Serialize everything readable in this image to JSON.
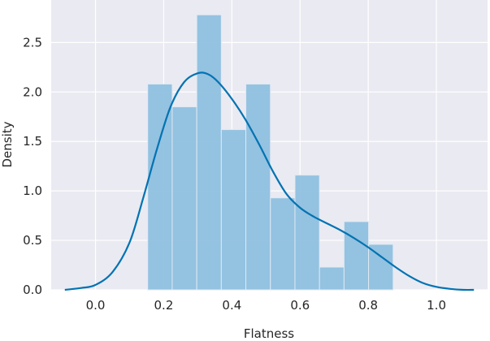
{
  "chart_data": {
    "type": "bar",
    "xlabel": "Flatness",
    "ylabel": "Density",
    "xlim": [
      -0.13,
      1.15
    ],
    "ylim": [
      0,
      2.93
    ],
    "xticks": [
      "0.0",
      "0.2",
      "0.4",
      "0.6",
      "0.8",
      "1.0"
    ],
    "yticks": [
      "0.0",
      "0.5",
      "1.0",
      "1.5",
      "2.0",
      "2.5"
    ],
    "grid": true,
    "colors": {
      "plot_background": "#eaeaf2",
      "grid": "#ffffff",
      "bar_fill": "#8fc0df",
      "kde_line": "#0173b2",
      "text": "#262626"
    },
    "bins": [
      {
        "x0": 0.153,
        "x1": 0.225,
        "density": 2.08
      },
      {
        "x0": 0.225,
        "x1": 0.297,
        "density": 1.85
      },
      {
        "x0": 0.297,
        "x1": 0.369,
        "density": 2.78
      },
      {
        "x0": 0.369,
        "x1": 0.441,
        "density": 1.62
      },
      {
        "x0": 0.441,
        "x1": 0.513,
        "density": 2.08
      },
      {
        "x0": 0.513,
        "x1": 0.585,
        "density": 0.93
      },
      {
        "x0": 0.585,
        "x1": 0.657,
        "density": 1.16
      },
      {
        "x0": 0.657,
        "x1": 0.729,
        "density": 0.23
      },
      {
        "x0": 0.729,
        "x1": 0.801,
        "density": 0.69
      },
      {
        "x0": 0.801,
        "x1": 0.873,
        "density": 0.46
      }
    ],
    "kde": {
      "x": [
        -0.09,
        -0.04,
        0.0,
        0.05,
        0.1,
        0.14,
        0.18,
        0.22,
        0.26,
        0.3,
        0.33,
        0.36,
        0.4,
        0.44,
        0.48,
        0.52,
        0.56,
        0.6,
        0.64,
        0.68,
        0.72,
        0.76,
        0.8,
        0.84,
        0.88,
        0.92,
        0.96,
        1.0,
        1.04,
        1.08,
        1.11
      ],
      "y": [
        0.0,
        0.02,
        0.05,
        0.18,
        0.48,
        0.93,
        1.42,
        1.85,
        2.1,
        2.19,
        2.18,
        2.1,
        1.93,
        1.72,
        1.47,
        1.2,
        0.97,
        0.83,
        0.74,
        0.67,
        0.6,
        0.52,
        0.43,
        0.33,
        0.23,
        0.14,
        0.07,
        0.03,
        0.01,
        0.0,
        0.0
      ]
    }
  }
}
